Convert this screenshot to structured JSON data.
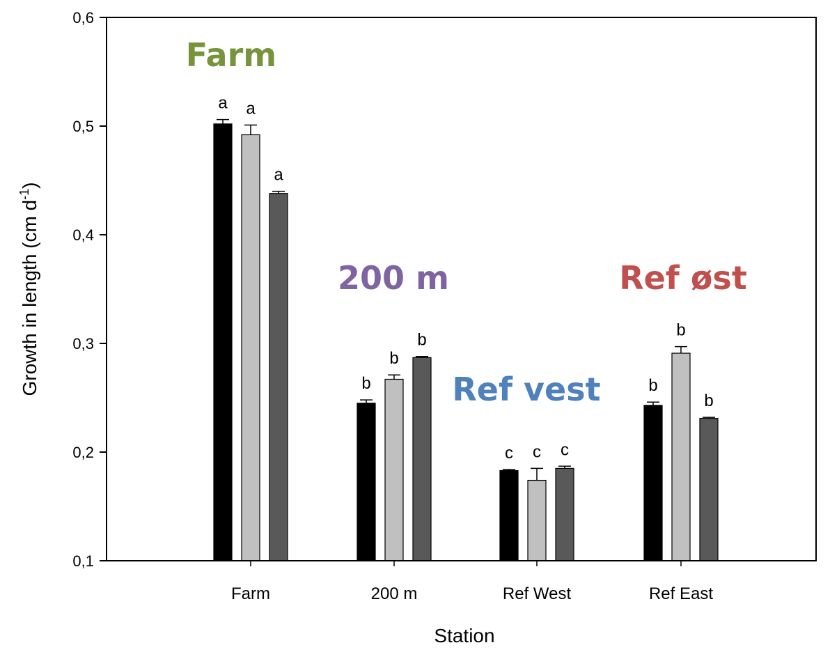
{
  "chart_data": {
    "type": "bar",
    "xlabel": "Station",
    "ylabel": "Growth in length (cm d",
    "ylabel_sup": "-1",
    "ylabel_close": ")",
    "ylim": [
      0.1,
      0.6
    ],
    "yticks": [
      0.1,
      0.2,
      0.3,
      0.4,
      0.5,
      0.6
    ],
    "ytick_labels": [
      "0,1",
      "0,2",
      "0,3",
      "0,4",
      "0,5",
      "0,6"
    ],
    "categories": [
      "Farm",
      "200 m",
      "Ref West",
      "Ref East"
    ],
    "series_colors": [
      "#000000",
      "#c0c0c0",
      "#595959"
    ],
    "series": [
      {
        "values": [
          0.502,
          0.245,
          0.183,
          0.243
        ],
        "errors": [
          0.004,
          0.003,
          0.001,
          0.003
        ],
        "letters": [
          "a",
          "b",
          "c",
          "b"
        ]
      },
      {
        "values": [
          0.492,
          0.267,
          0.174,
          0.291
        ],
        "errors": [
          0.009,
          0.004,
          0.011,
          0.006
        ],
        "letters": [
          "a",
          "b",
          "c",
          "b"
        ]
      },
      {
        "values": [
          0.438,
          0.287,
          0.185,
          0.231
        ],
        "errors": [
          0.002,
          0.001,
          0.002,
          0.001
        ],
        "letters": [
          "a",
          "b",
          "c",
          "b"
        ]
      }
    ],
    "annotations": [
      {
        "text": "Farm",
        "color": "#77933c"
      },
      {
        "text": "200 m",
        "color": "#8064a2"
      },
      {
        "text": "Ref vest",
        "color": "#4f81bd"
      },
      {
        "text": "Ref øst",
        "color": "#c0504d"
      }
    ],
    "grid": false,
    "legend": "none"
  }
}
